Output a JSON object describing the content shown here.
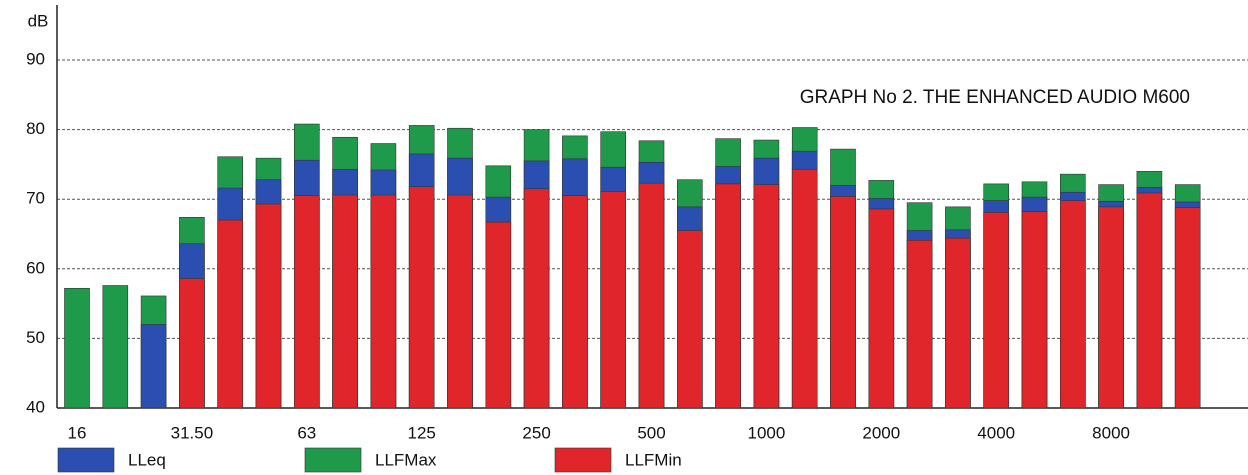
{
  "chart_data": {
    "type": "bar",
    "title": "GRAPH No 2. THE ENHANCED AUDIO M600",
    "y_label": "dB",
    "categories": [
      "16",
      null,
      null,
      "31.50",
      null,
      null,
      "63",
      null,
      null,
      "125",
      null,
      null,
      "250",
      null,
      null,
      "500",
      null,
      null,
      "1000",
      null,
      null,
      "2000",
      null,
      null,
      "4000",
      null,
      null,
      "8000",
      null,
      null
    ],
    "series": [
      {
        "name": "LLeq",
        "color": "#2a4fb0",
        "values": [
          null,
          null,
          52,
          63.6,
          71.6,
          72.8,
          75.6,
          74.3,
          74.2,
          76.5,
          75.9,
          70.3,
          75.5,
          75.8,
          74.6,
          75.3,
          68.9,
          74.7,
          75.9,
          76.9,
          72,
          70.1,
          65.5,
          65.6,
          69.8,
          70.3,
          71,
          69.7,
          71.7,
          69.6
        ]
      },
      {
        "name": "LLFMax",
        "color": "#1f9a4a",
        "values": [
          57.2,
          57.6,
          56.1,
          67.4,
          76.1,
          75.9,
          80.8,
          78.9,
          78,
          80.6,
          80.2,
          74.8,
          80,
          79.1,
          79.7,
          78.4,
          72.8,
          78.7,
          78.5,
          80.3,
          77.2,
          72.7,
          69.5,
          68.9,
          72.2,
          72.5,
          73.6,
          72.1,
          74,
          72.1
        ]
      },
      {
        "name": "LLFMin",
        "color": "#e0262a",
        "values": [
          null,
          null,
          null,
          58.6,
          67,
          69.3,
          70.5,
          70.6,
          70.6,
          71.8,
          70.6,
          66.7,
          71.5,
          70.5,
          71.1,
          72.3,
          65.5,
          72.2,
          72.1,
          74.3,
          70.4,
          68.6,
          64.1,
          64.4,
          68.1,
          68.2,
          69.8,
          68.9,
          70.9,
          68.8
        ]
      }
    ],
    "ylim": [
      40,
      90
    ],
    "yticks": [
      40,
      50,
      60,
      70,
      80,
      90
    ],
    "grid": true
  }
}
